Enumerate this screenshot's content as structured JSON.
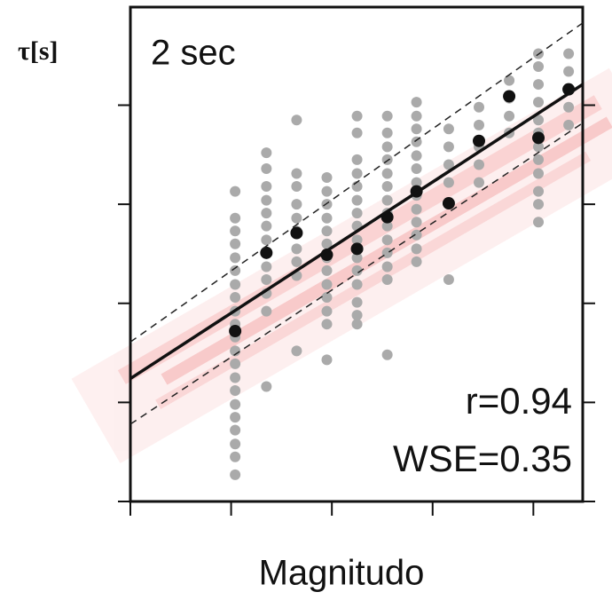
{
  "chart_data": {
    "type": "scatter",
    "y_label": "τ[s]",
    "subtitle": "2 sec",
    "annotations": [
      "r=0.94",
      "WSE=0.35"
    ],
    "x_label": "Magnitudo",
    "xlim": [
      0,
      4.49
    ],
    "ylim": [
      0,
      4.99
    ],
    "xticks": [
      0,
      1,
      2,
      3,
      4
    ],
    "yticks": [
      0,
      1,
      2,
      3,
      4
    ],
    "series": [
      {
        "color": "#aaaaaa",
        "x": [
          1.04,
          1.04,
          1.04,
          1.04,
          1.04,
          1.04,
          1.04,
          1.04,
          1.04,
          1.04,
          1.04,
          1.04,
          1.04,
          1.04,
          1.04,
          1.04,
          1.04,
          1.04,
          1.04,
          1.04,
          1.04,
          1.35,
          1.35,
          1.35,
          1.35,
          1.35,
          1.35,
          1.35,
          1.35,
          1.35,
          1.35,
          1.35,
          1.35,
          1.35,
          1.65,
          1.65,
          1.65,
          1.65,
          1.65,
          1.65,
          1.65,
          1.65,
          1.65,
          1.65,
          1.95,
          1.95,
          1.95,
          1.95,
          1.95,
          1.95,
          1.95,
          1.95,
          1.95,
          1.95,
          1.95,
          1.95,
          1.95,
          2.25,
          2.25,
          2.25,
          2.25,
          2.25,
          2.25,
          2.25,
          2.25,
          2.25,
          2.25,
          2.25,
          2.25,
          2.25,
          2.25,
          2.25,
          2.55,
          2.55,
          2.55,
          2.55,
          2.55,
          2.55,
          2.55,
          2.55,
          2.55,
          2.55,
          2.55,
          2.55,
          2.55,
          2.55,
          2.84,
          2.84,
          2.84,
          2.84,
          2.84,
          2.84,
          2.84,
          2.84,
          2.84,
          2.84,
          2.84,
          2.84,
          2.84,
          3.16,
          3.16,
          3.16,
          3.16,
          3.16,
          3.16,
          3.46,
          3.46,
          3.46,
          3.46,
          3.46,
          3.76,
          3.76,
          3.76,
          3.76,
          4.05,
          4.05,
          4.05,
          4.05,
          4.05,
          4.05,
          4.05,
          4.05,
          4.05,
          4.05,
          4.05,
          4.05,
          4.35,
          4.35,
          4.35,
          4.35
        ],
        "values": [
          3.13,
          2.86,
          2.73,
          2.6,
          2.46,
          2.33,
          2.19,
          2.06,
          1.92,
          1.79,
          1.66,
          1.52,
          1.39,
          1.25,
          1.12,
          0.98,
          0.85,
          0.72,
          0.58,
          0.45,
          0.27,
          3.52,
          3.36,
          3.18,
          3.04,
          2.91,
          2.78,
          2.64,
          2.51,
          2.37,
          2.24,
          2.1,
          1.92,
          1.16,
          3.85,
          3.31,
          3.18,
          3.0,
          2.86,
          2.73,
          2.55,
          2.42,
          2.28,
          1.52,
          3.27,
          3.13,
          3.0,
          2.86,
          2.73,
          2.6,
          2.46,
          2.33,
          2.19,
          2.06,
          1.92,
          1.79,
          1.43,
          3.89,
          3.72,
          3.45,
          3.31,
          3.18,
          3.04,
          2.91,
          2.78,
          2.64,
          2.46,
          2.33,
          2.19,
          2.01,
          1.88,
          1.79,
          3.89,
          3.72,
          3.58,
          3.45,
          3.31,
          3.18,
          3.04,
          2.91,
          2.78,
          2.64,
          2.51,
          2.37,
          2.24,
          1.48,
          4.03,
          3.89,
          3.76,
          3.63,
          3.49,
          3.36,
          3.22,
          3.09,
          2.95,
          2.82,
          2.69,
          2.55,
          2.42,
          3.76,
          3.58,
          3.4,
          3.22,
          3.0,
          2.24,
          3.98,
          3.8,
          3.58,
          3.4,
          3.22,
          4.25,
          4.07,
          3.89,
          3.72,
          4.52,
          4.39,
          4.21,
          4.03,
          3.85,
          3.72,
          3.58,
          3.45,
          3.31,
          3.13,
          3.0,
          2.82,
          4.52,
          4.34,
          3.98,
          3.8
        ]
      },
      {
        "color": "#111111",
        "x": [
          1.04,
          1.35,
          1.65,
          1.95,
          2.25,
          2.55,
          2.84,
          3.16,
          3.46,
          3.76,
          4.05,
          4.35
        ],
        "values": [
          1.72,
          2.51,
          2.71,
          2.49,
          2.55,
          2.87,
          3.13,
          3.01,
          3.64,
          4.09,
          3.67,
          4.16
        ]
      }
    ],
    "lines": [
      {
        "x": [
          0,
          4.49
        ],
        "values": [
          1.24,
          4.21
        ],
        "color": "#111111",
        "dashed": false
      },
      {
        "x": [
          0,
          4.49
        ],
        "values": [
          1.61,
          4.83
        ],
        "color": "#222222",
        "dashed": true
      },
      {
        "x": [
          0,
          4.49
        ],
        "values": [
          0.78,
          3.82
        ],
        "color": "#222222",
        "dashed": true
      }
    ]
  }
}
